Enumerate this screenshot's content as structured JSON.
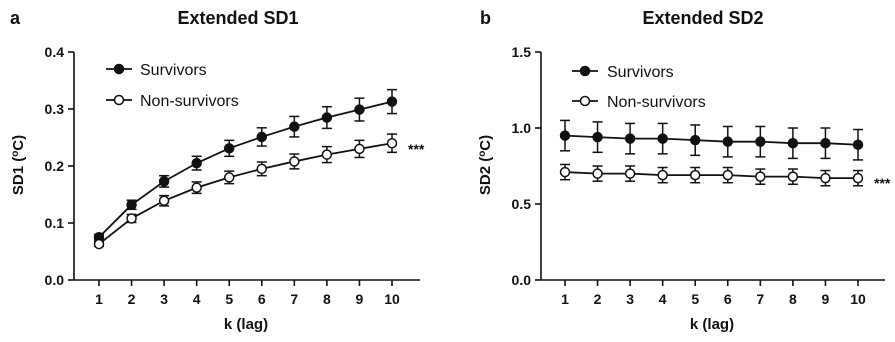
{
  "chart_data": [
    {
      "type": "line",
      "panel": "a",
      "title": "Extended SD1",
      "xlabel": "k (lag)",
      "ylabel": "SD1 (°C)",
      "ylabel_main": "SD1 (",
      "ylabel_sup": "o",
      "ylabel_unit": "C)",
      "x": [
        1,
        2,
        3,
        4,
        5,
        6,
        7,
        8,
        9,
        10
      ],
      "x_ticks": [
        "1",
        "2",
        "3",
        "4",
        "5",
        "6",
        "7",
        "8",
        "9",
        "10"
      ],
      "ylim": [
        0,
        0.4
      ],
      "y_ticks": [
        "0.0",
        "0.1",
        "0.2",
        "0.3",
        "0.4"
      ],
      "legend": "top-left",
      "grid": false,
      "significance": "***",
      "series": [
        {
          "name": "Survivors",
          "marker": "filled-circle",
          "values": [
            0.075,
            0.132,
            0.173,
            0.205,
            0.231,
            0.251,
            0.269,
            0.285,
            0.299,
            0.313
          ],
          "errors": [
            0.005,
            0.008,
            0.01,
            0.012,
            0.014,
            0.016,
            0.018,
            0.019,
            0.02,
            0.021
          ]
        },
        {
          "name": "Non-survivors",
          "marker": "open-circle",
          "values": [
            0.063,
            0.108,
            0.139,
            0.162,
            0.18,
            0.195,
            0.208,
            0.22,
            0.23,
            0.24
          ],
          "errors": [
            0.004,
            0.007,
            0.009,
            0.01,
            0.011,
            0.012,
            0.013,
            0.014,
            0.015,
            0.016
          ]
        }
      ]
    },
    {
      "type": "line",
      "panel": "b",
      "title": "Extended SD2",
      "xlabel": "k (lag)",
      "ylabel": "SD2 (°C)",
      "ylabel_main": "SD2 (",
      "ylabel_sup": "o",
      "ylabel_unit": "C)",
      "x": [
        1,
        2,
        3,
        4,
        5,
        6,
        7,
        8,
        9,
        10
      ],
      "x_ticks": [
        "1",
        "2",
        "3",
        "4",
        "5",
        "6",
        "7",
        "8",
        "9",
        "10"
      ],
      "ylim": [
        0,
        1.5
      ],
      "y_ticks": [
        "0.0",
        "0.5",
        "1.0",
        "1.5"
      ],
      "legend": "top-left",
      "grid": false,
      "significance": "***",
      "series": [
        {
          "name": "Survivors",
          "marker": "filled-circle",
          "values": [
            0.95,
            0.94,
            0.93,
            0.93,
            0.92,
            0.91,
            0.91,
            0.9,
            0.9,
            0.89
          ],
          "errors": [
            0.1,
            0.1,
            0.1,
            0.1,
            0.1,
            0.1,
            0.1,
            0.1,
            0.1,
            0.1
          ]
        },
        {
          "name": "Non-survivors",
          "marker": "open-circle",
          "values": [
            0.71,
            0.7,
            0.7,
            0.69,
            0.69,
            0.69,
            0.68,
            0.68,
            0.67,
            0.67
          ],
          "errors": [
            0.05,
            0.05,
            0.05,
            0.05,
            0.05,
            0.05,
            0.05,
            0.05,
            0.05,
            0.05
          ]
        }
      ]
    }
  ]
}
